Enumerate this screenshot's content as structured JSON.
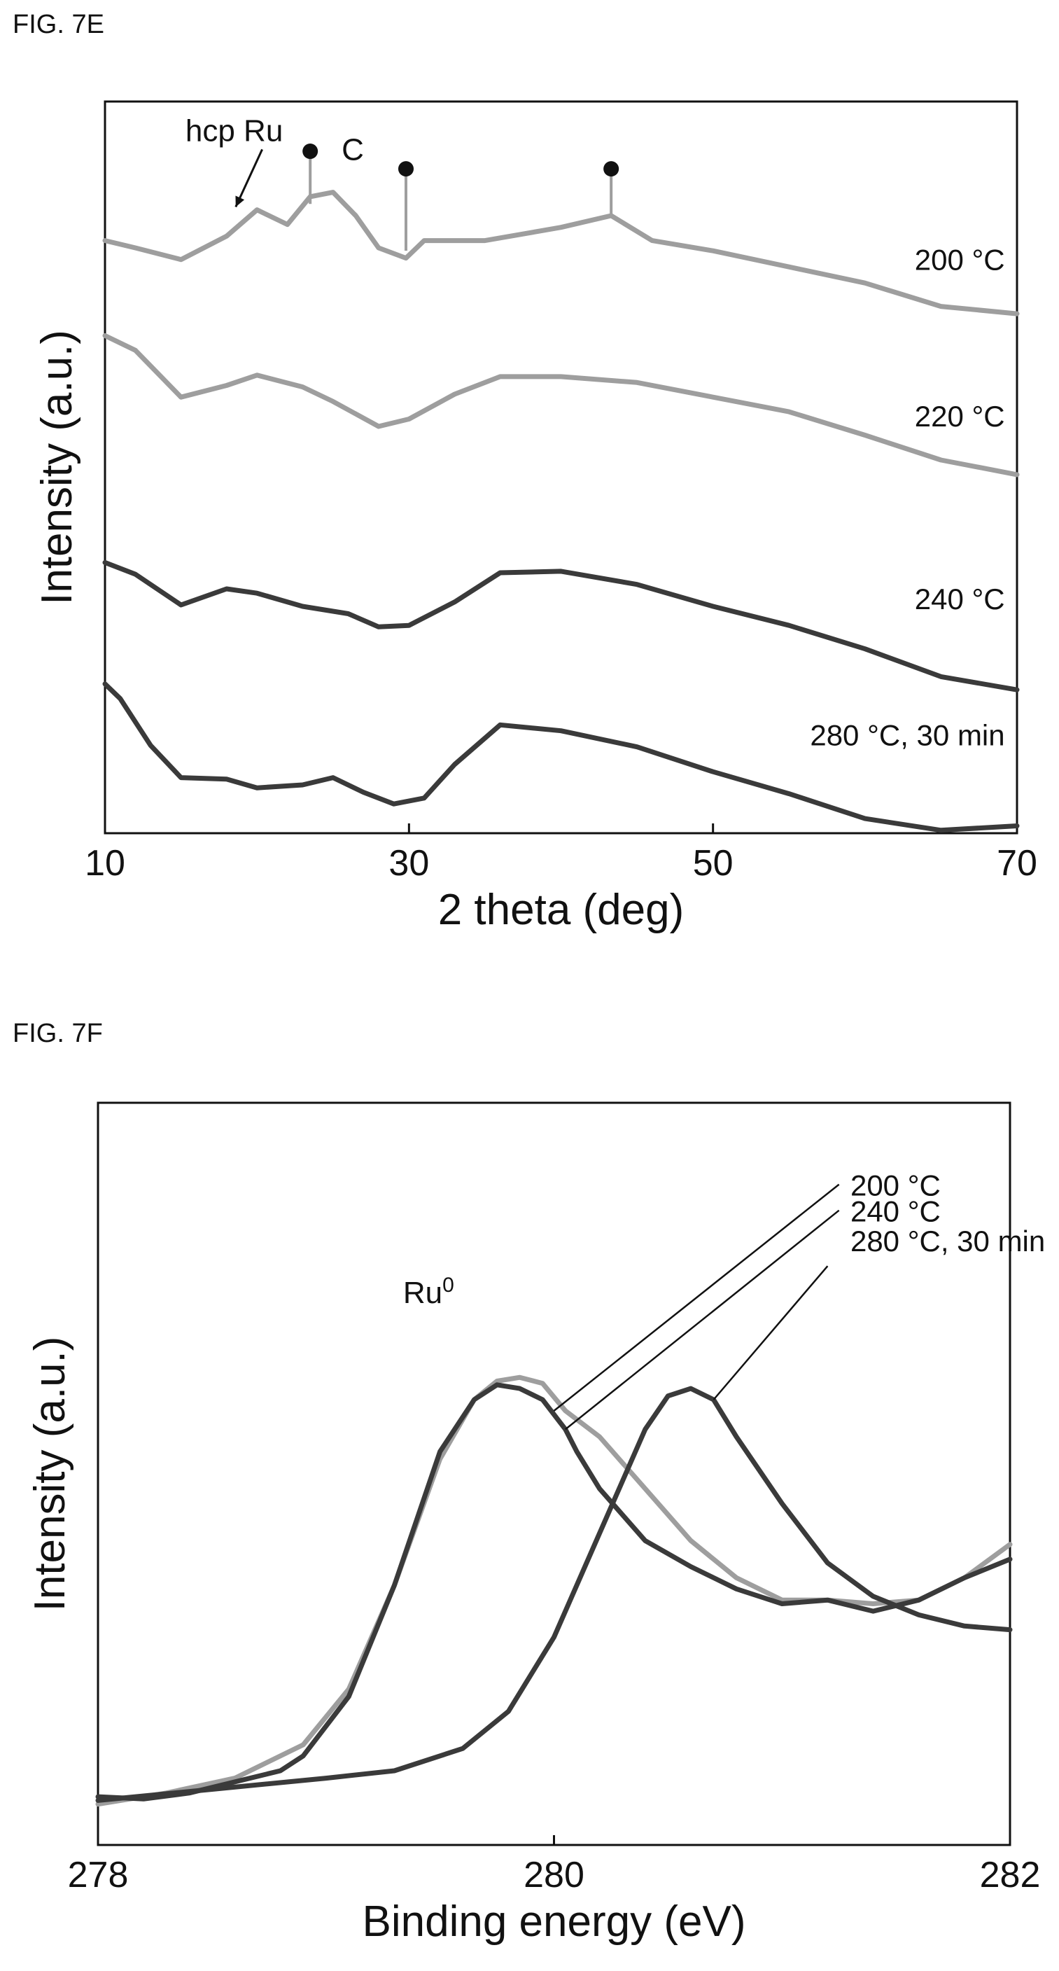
{
  "figures": [
    {
      "label": "FIG. 7E"
    },
    {
      "label": "FIG. 7F"
    }
  ],
  "chart_data": [
    {
      "type": "line",
      "title": "",
      "xlabel": "2 theta (deg)",
      "ylabel": "Intensity (a.u.)",
      "xlim": [
        10,
        70
      ],
      "ylim": [
        0,
        5
      ],
      "xticks": [
        10,
        30,
        50,
        70
      ],
      "grid": false,
      "colors": {
        "light": "#9e9e9e",
        "dark": "#3a3a3a"
      },
      "annotations": [
        {
          "text": "hcp Ru",
          "x": 18.5,
          "y": 4.73,
          "arrow_to": [
            18.6,
            4.28
          ]
        },
        {
          "text": "C",
          "x": 26.3,
          "y": 4.6
        }
      ],
      "peak_markers": [
        {
          "x": 23.5,
          "y_top": 4.66,
          "y_base": 4.3
        },
        {
          "x": 29.8,
          "y_top": 4.54,
          "y_base": 3.98
        },
        {
          "x": 43.3,
          "y_top": 4.54,
          "y_base": 4.22
        }
      ],
      "series": [
        {
          "name": "200 °C",
          "color": "light",
          "x": [
            10,
            12,
            15,
            18,
            20,
            22,
            23.5,
            25,
            26.5,
            28,
            29.8,
            31,
            35,
            40,
            43.3,
            46,
            50,
            55,
            60,
            65,
            70
          ],
          "y": [
            4.05,
            4.0,
            3.92,
            4.08,
            4.26,
            4.16,
            4.35,
            4.38,
            4.22,
            4.0,
            3.93,
            4.05,
            4.05,
            4.14,
            4.22,
            4.05,
            3.98,
            3.87,
            3.76,
            3.6,
            3.55
          ]
        },
        {
          "name": "220 °C",
          "color": "light",
          "x": [
            10,
            12,
            15,
            18,
            20,
            23,
            25,
            28,
            30,
            33,
            36,
            40,
            45,
            50,
            55,
            60,
            65,
            70
          ],
          "y": [
            3.4,
            3.3,
            2.98,
            3.06,
            3.13,
            3.05,
            2.95,
            2.78,
            2.83,
            3.0,
            3.12,
            3.12,
            3.08,
            2.98,
            2.88,
            2.72,
            2.55,
            2.45
          ]
        },
        {
          "name": "240 °C",
          "color": "dark",
          "x": [
            10,
            12,
            15,
            18,
            20,
            23,
            26,
            28,
            30,
            33,
            36,
            40,
            45,
            50,
            55,
            60,
            65,
            70
          ],
          "y": [
            1.85,
            1.77,
            1.56,
            1.67,
            1.64,
            1.55,
            1.5,
            1.41,
            1.42,
            1.58,
            1.78,
            1.79,
            1.7,
            1.55,
            1.42,
            1.26,
            1.07,
            0.98
          ]
        },
        {
          "name": "280 °C, 30 min",
          "color": "dark",
          "x": [
            10,
            11,
            13,
            15,
            18,
            20,
            23,
            25,
            27,
            29,
            31,
            33,
            36,
            40,
            45,
            50,
            55,
            60,
            65,
            70
          ],
          "y": [
            1.02,
            0.92,
            0.6,
            0.38,
            0.37,
            0.31,
            0.33,
            0.38,
            0.28,
            0.2,
            0.24,
            0.47,
            0.74,
            0.7,
            0.59,
            0.42,
            0.27,
            0.1,
            0.02,
            0.05
          ]
        }
      ],
      "series_labels": [
        {
          "series": "200 °C",
          "x": 69.2,
          "y": 3.85
        },
        {
          "series": "220 °C",
          "x": 69.2,
          "y": 2.78
        },
        {
          "series": "240 °C",
          "x": 69.2,
          "y": 1.53
        },
        {
          "series": "280 °C, 30 min",
          "x": 69.2,
          "y": 0.6
        }
      ]
    },
    {
      "type": "line",
      "title": "",
      "xlabel": "Binding energy (eV)",
      "ylabel": "Intensity (a.u.)",
      "xlim": [
        278,
        282
      ],
      "ylim": [
        0,
        1
      ],
      "xticks": [
        278,
        280,
        282
      ],
      "grid": false,
      "colors": {
        "light": "#9e9e9e",
        "dark": "#3a3a3a"
      },
      "annotations": [
        {
          "text": "Ru",
          "superscript": "0",
          "x": 279.45,
          "y": 0.73
        }
      ],
      "series": [
        {
          "name": "200 °C",
          "color": "light",
          "x": [
            278,
            278.3,
            278.6,
            278.9,
            279.1,
            279.3,
            279.5,
            279.65,
            279.75,
            279.85,
            279.95,
            280.05,
            280.2,
            280.4,
            280.6,
            280.8,
            281.0,
            281.2,
            281.4,
            281.6,
            281.8,
            282.0
          ],
          "y": [
            0.055,
            0.07,
            0.09,
            0.135,
            0.21,
            0.35,
            0.52,
            0.6,
            0.625,
            0.63,
            0.622,
            0.585,
            0.55,
            0.48,
            0.41,
            0.36,
            0.33,
            0.33,
            0.325,
            0.33,
            0.36,
            0.405
          ]
        },
        {
          "name": "240 °C",
          "color": "dark",
          "x": [
            278,
            278.2,
            278.4,
            278.6,
            278.8,
            278.9,
            279.1,
            279.3,
            279.5,
            279.65,
            279.75,
            279.85,
            279.95,
            280.05,
            280.1,
            280.2,
            280.4,
            280.6,
            280.8,
            281.0,
            281.2,
            281.4,
            281.6,
            281.8,
            282.0
          ],
          "y": [
            0.065,
            0.062,
            0.07,
            0.085,
            0.1,
            0.12,
            0.2,
            0.35,
            0.53,
            0.6,
            0.62,
            0.615,
            0.6,
            0.56,
            0.53,
            0.48,
            0.41,
            0.375,
            0.345,
            0.325,
            0.33,
            0.315,
            0.33,
            0.36,
            0.385
          ]
        },
        {
          "name": "280 °C, 30 min",
          "color": "dark",
          "x": [
            278,
            278.5,
            279.0,
            279.3,
            279.6,
            279.8,
            280.0,
            280.2,
            280.4,
            280.5,
            280.6,
            280.7,
            280.8,
            281.0,
            281.2,
            281.4,
            281.6,
            281.8,
            282.0
          ],
          "y": [
            0.06,
            0.075,
            0.09,
            0.1,
            0.13,
            0.18,
            0.28,
            0.42,
            0.56,
            0.605,
            0.615,
            0.6,
            0.55,
            0.46,
            0.38,
            0.335,
            0.31,
            0.295,
            0.29
          ]
        }
      ],
      "legend_labels": [
        {
          "series": "200 °C",
          "x": 281.3,
          "y": 0.875
        },
        {
          "series": "240 °C",
          "x": 281.3,
          "y": 0.84
        },
        {
          "series": "280 °C, 30 min",
          "x": 281.3,
          "y": 0.8
        }
      ],
      "leader_lines": [
        {
          "series": "200 °C",
          "from": [
            281.25,
            0.89
          ],
          "to": [
            280.0,
            0.585
          ]
        },
        {
          "series": "240 °C",
          "from": [
            281.25,
            0.855
          ],
          "to": [
            280.05,
            0.56
          ]
        },
        {
          "series": "280 °C, 30 min",
          "from": [
            281.2,
            0.78
          ],
          "to": [
            280.7,
            0.6
          ]
        }
      ]
    }
  ]
}
